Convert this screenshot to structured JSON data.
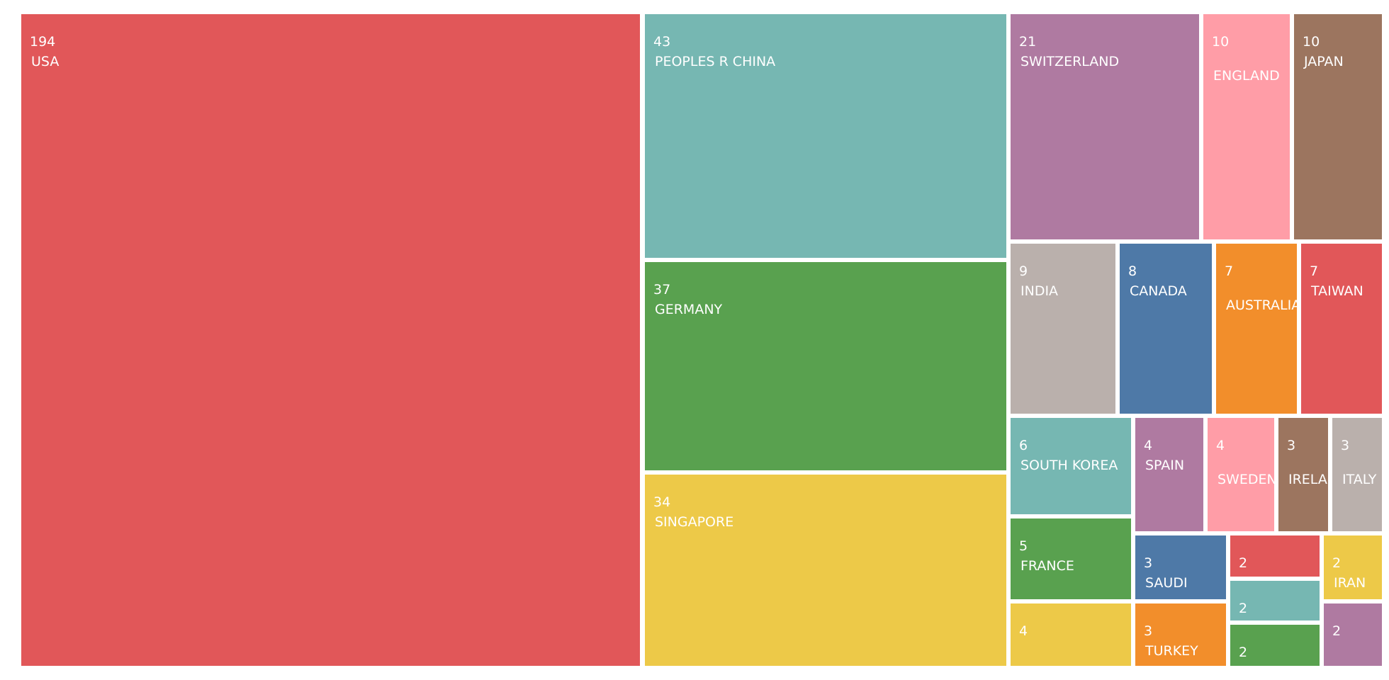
{
  "chart_data": {
    "type": "treemap",
    "title": "",
    "palette": [
      "#e15759",
      "#76b7b2",
      "#59a14f",
      "#edc948",
      "#af7aa1",
      "#ff9da7",
      "#9c755f",
      "#bab0ac",
      "#4e79a7",
      "#f28e2b"
    ],
    "items": [
      {
        "label": "USA",
        "value": 194,
        "color": "#e15759"
      },
      {
        "label": "PEOPLES R CHINA",
        "value": 43,
        "color": "#76b7b2"
      },
      {
        "label": "GERMANY",
        "value": 37,
        "color": "#59a14f"
      },
      {
        "label": "SINGAPORE",
        "value": 34,
        "color": "#edc948"
      },
      {
        "label": "SWITZERLAND",
        "value": 21,
        "color": "#af7aa1"
      },
      {
        "label": "ENGLAND",
        "value": 10,
        "color": "#ff9da7"
      },
      {
        "label": "JAPAN",
        "value": 10,
        "color": "#9c755f"
      },
      {
        "label": "INDIA",
        "value": 9,
        "color": "#bab0ac"
      },
      {
        "label": "CANADA",
        "value": 8,
        "color": "#4e79a7"
      },
      {
        "label": "AUSTRALIA",
        "value": 7,
        "color": "#f28e2b"
      },
      {
        "label": "TAIWAN",
        "value": 7,
        "color": "#e15759"
      },
      {
        "label": "SOUTH KOREA",
        "value": 6,
        "color": "#76b7b2"
      },
      {
        "label": "FRANCE",
        "value": 5,
        "color": "#59a14f"
      },
      {
        "label": "",
        "value": 4,
        "color": "#edc948"
      },
      {
        "label": "SPAIN",
        "value": 4,
        "color": "#af7aa1"
      },
      {
        "label": "SWEDEN",
        "value": 4,
        "color": "#ff9da7"
      },
      {
        "label": "IRELAND",
        "value": 3,
        "color": "#9c755f"
      },
      {
        "label": "ITALY",
        "value": 3,
        "color": "#bab0ac"
      },
      {
        "label": "SAUDI",
        "value": 3,
        "color": "#4e79a7"
      },
      {
        "label": "TURKEY",
        "value": 3,
        "color": "#f28e2b"
      },
      {
        "label": "",
        "value": 2,
        "color": "#e15759"
      },
      {
        "label": "",
        "value": 2,
        "color": "#76b7b2"
      },
      {
        "label": "",
        "value": 2,
        "color": "#59a14f"
      },
      {
        "label": "IRAN",
        "value": 2,
        "color": "#edc948"
      },
      {
        "label": "",
        "value": 2,
        "color": "#af7aa1"
      }
    ]
  }
}
